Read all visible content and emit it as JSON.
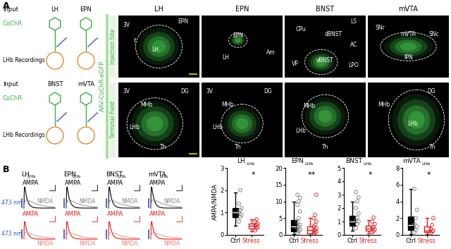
{
  "panel_a": {
    "letter": "A",
    "schematic": {
      "input_label": "Input",
      "opsin": "CoChR",
      "recording": "LHb Recordings",
      "inputs": [
        "LH",
        "EPN",
        "BNST",
        "mVTA"
      ]
    },
    "vector": "AAV-CoChR-eGFP",
    "rows": [
      "Injection Site",
      "Terminal Field"
    ],
    "columns": [
      "LH",
      "EPN",
      "BNST",
      "mVTA"
    ],
    "injection_regions": [
      [
        "3V",
        "EPN",
        "LH",
        "f"
      ],
      [
        "EPN",
        "LH",
        "Am"
      ],
      [
        "LS",
        "CPu",
        "dBNST",
        "AC",
        "VP",
        "vBNST",
        "LPO"
      ],
      [
        "SNr",
        "mVTA",
        "SNc",
        "IPN"
      ]
    ],
    "terminal_regions": [
      [
        "3V",
        "DG",
        "MHb",
        "LHb",
        "Th"
      ],
      [
        "3V",
        "MHb",
        "DG",
        "LHb",
        "Th"
      ],
      [
        "MHb",
        "LHb",
        "Th"
      ],
      [
        "DG",
        "MHb",
        "LHb",
        "Th"
      ]
    ]
  },
  "panel_b": {
    "letter": "B",
    "traces": {
      "names": [
        {
          "main": "LH",
          "sub": "LHb"
        },
        {
          "main": "EPN",
          "sub": "LHb"
        },
        {
          "main": "BNST",
          "sub": "LHb"
        },
        {
          "main": "mVTA",
          "sub": "LHb"
        }
      ],
      "ampa": "AMPA",
      "nmda": "NMDA",
      "light": "473 nm"
    }
  },
  "chart_data": [
    {
      "type": "box",
      "title": "LH",
      "title_sub": "LHb",
      "y_label": "AMPA/NMDA",
      "significance": "*",
      "categories": [
        "Ctrl",
        "Stress"
      ],
      "colors": [
        "#000000",
        "#e31a1c"
      ],
      "ylim": [
        0,
        3
      ],
      "yticks": [
        0,
        1,
        2,
        3
      ],
      "boxes": [
        {
          "q1": 0.8,
          "median": 1.0,
          "q3": 1.2,
          "whislo": 0.4,
          "whishi": 1.9,
          "points": [
            0.6,
            0.8,
            0.9,
            1.0,
            1.1,
            1.2,
            1.4,
            2.0
          ]
        },
        {
          "q1": 0.3,
          "median": 0.4,
          "q3": 0.5,
          "whislo": 0.15,
          "whishi": 0.7,
          "points": [
            0.2,
            0.3,
            0.35,
            0.4,
            0.45,
            0.5,
            0.6,
            0.7
          ]
        }
      ]
    },
    {
      "type": "box",
      "title": "EPN",
      "title_sub": "LHb",
      "significance": "**",
      "categories": [
        "Ctrl",
        "Stress"
      ],
      "colors": [
        "#000000",
        "#e31a1c"
      ],
      "ylim": [
        0,
        20
      ],
      "yticks": [
        0,
        5,
        10,
        15,
        20
      ],
      "boxes": [
        {
          "q1": 1.0,
          "median": 2.5,
          "q3": 4.5,
          "whislo": 0.2,
          "whishi": 10,
          "points": [
            0.5,
            1,
            1.5,
            2,
            2.5,
            3,
            4,
            5,
            7,
            9,
            10,
            11,
            12
          ]
        },
        {
          "q1": 0.5,
          "median": 1.5,
          "q3": 2.5,
          "whislo": 0.1,
          "whishi": 5,
          "points": [
            0.3,
            0.6,
            1,
            1.2,
            1.5,
            2,
            2.5,
            3,
            4,
            5,
            6,
            12
          ]
        }
      ]
    },
    {
      "type": "box",
      "title": "BNST",
      "title_sub": "LHb",
      "significance": "*",
      "categories": [
        "Ctrl",
        "Stress"
      ],
      "colors": [
        "#000000",
        "#e31a1c"
      ],
      "ylim": [
        0,
        5
      ],
      "yticks": [
        0,
        1,
        2,
        3,
        4,
        5
      ],
      "boxes": [
        {
          "q1": 0.7,
          "median": 1.0,
          "q3": 1.4,
          "whislo": 0.3,
          "whishi": 2.5,
          "points": [
            0.5,
            0.8,
            1,
            1.1,
            1.3,
            1.6,
            2,
            2.5,
            2.8,
            3.2
          ]
        },
        {
          "q1": 0.3,
          "median": 0.5,
          "q3": 0.7,
          "whislo": 0.1,
          "whishi": 1.1,
          "points": [
            0.2,
            0.3,
            0.4,
            0.5,
            0.6,
            0.8,
            1.0,
            1.3
          ]
        }
      ]
    },
    {
      "type": "box",
      "title": "mVTA",
      "title_sub": "LHb",
      "significance": "*",
      "categories": [
        "Ctrl",
        "Stress"
      ],
      "colors": [
        "#000000",
        "#e31a1c"
      ],
      "ylim": [
        0,
        8
      ],
      "yticks": [
        0,
        2,
        4,
        6,
        8
      ],
      "boxes": [
        {
          "q1": 0.6,
          "median": 1.2,
          "q3": 2.2,
          "whislo": 0.1,
          "whishi": 5.5,
          "points": [
            0.3,
            0.6,
            1,
            1.3,
            2,
            3,
            5.5
          ]
        },
        {
          "q1": 0.3,
          "median": 0.5,
          "q3": 1.0,
          "whislo": 0.1,
          "whishi": 2.0,
          "points": [
            0.2,
            0.4,
            0.5,
            0.7,
            1.2,
            2.0
          ]
        }
      ]
    }
  ]
}
